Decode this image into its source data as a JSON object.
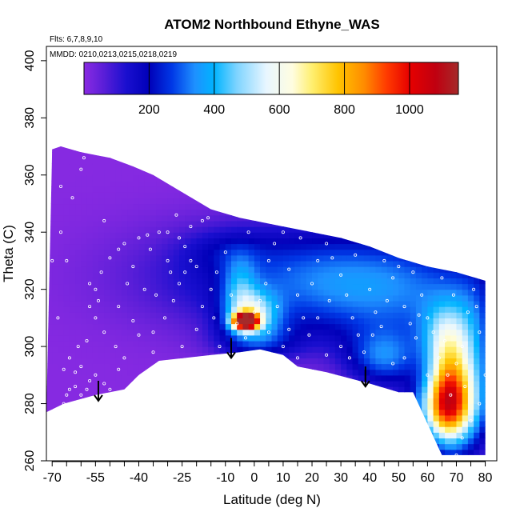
{
  "chart_data": {
    "type": "heatmap",
    "title": "ATOM2 Northbound Ethyne_WAS",
    "subtitle_flights": "Flts: 6,7,8,9,10",
    "subtitle_dates": "MMDD: 0210,0213,0215,0218,0219",
    "xlabel": "Latitude (deg N)",
    "ylabel": "Theta (C)",
    "xlim": [
      -72,
      84
    ],
    "ylim": [
      260,
      405
    ],
    "x_ticks": [
      -70,
      -55,
      -40,
      -25,
      -10,
      0,
      10,
      20,
      30,
      40,
      50,
      60,
      70,
      80
    ],
    "x_tick_labels": [
      "-70",
      "-55",
      "-40",
      "-25",
      "-10",
      "0",
      "10",
      "20",
      "30",
      "40",
      "50",
      "60",
      "70",
      "80"
    ],
    "x_minor_ticks": [
      -65,
      -60,
      -50,
      -45,
      -35,
      -30,
      -20,
      -15,
      -5,
      5,
      15,
      25,
      35,
      45,
      55,
      65,
      75
    ],
    "y_ticks": [
      260,
      280,
      300,
      320,
      340,
      360,
      380,
      400
    ],
    "y_tick_labels": [
      "260",
      "280",
      "300",
      "320",
      "340",
      "360",
      "380",
      "400"
    ],
    "colorbar": {
      "range": [
        0,
        1150
      ],
      "ticks": [
        200,
        400,
        600,
        800,
        1000
      ],
      "tick_labels": [
        "200",
        "400",
        "600",
        "800",
        "1000"
      ],
      "stops": [
        {
          "v": 0,
          "c": "#8a2be2"
        },
        {
          "v": 60,
          "c": "#5a1ed8"
        },
        {
          "v": 130,
          "c": "#1a0fcf"
        },
        {
          "v": 200,
          "c": "#0000b8"
        },
        {
          "v": 270,
          "c": "#0038e6"
        },
        {
          "v": 340,
          "c": "#1e90ff"
        },
        {
          "v": 400,
          "c": "#00b4ff"
        },
        {
          "v": 470,
          "c": "#7fd4ff"
        },
        {
          "v": 560,
          "c": "#e8f6ff"
        },
        {
          "v": 640,
          "c": "#fffde0"
        },
        {
          "v": 700,
          "c": "#ffef70"
        },
        {
          "v": 780,
          "c": "#ffc400"
        },
        {
          "v": 860,
          "c": "#ff8c00"
        },
        {
          "v": 930,
          "c": "#ff3a00"
        },
        {
          "v": 1000,
          "c": "#e60000"
        },
        {
          "v": 1080,
          "c": "#c00010"
        },
        {
          "v": 1150,
          "c": "#a52a2a"
        }
      ]
    },
    "top_boundary": [
      [
        -70,
        369
      ],
      [
        -67,
        370
      ],
      [
        -60,
        368
      ],
      [
        -50,
        366
      ],
      [
        -42,
        363
      ],
      [
        -35,
        360
      ],
      [
        -25,
        354
      ],
      [
        -15,
        348
      ],
      [
        -5,
        345
      ],
      [
        0,
        344
      ],
      [
        10,
        342
      ],
      [
        20,
        340
      ],
      [
        30,
        338
      ],
      [
        40,
        335
      ],
      [
        50,
        331
      ],
      [
        60,
        328
      ],
      [
        70,
        326
      ],
      [
        80,
        323
      ]
    ],
    "bottom_boundary": [
      [
        -72,
        277
      ],
      [
        -66,
        280
      ],
      [
        -55,
        283
      ],
      [
        -45,
        285
      ],
      [
        -40,
        290
      ],
      [
        -33,
        295
      ],
      [
        -15,
        297
      ],
      [
        -5,
        298
      ],
      [
        2,
        299
      ],
      [
        10,
        297
      ],
      [
        15,
        293
      ],
      [
        25,
        291
      ],
      [
        40,
        287
      ],
      [
        50,
        284
      ],
      [
        55,
        284
      ],
      [
        65,
        262
      ],
      [
        80,
        262
      ]
    ],
    "field_background": 5,
    "field_bumps": [
      {
        "lat": -3,
        "theta": 309,
        "sx": 3.0,
        "sy": 2.0,
        "amp": 1100
      },
      {
        "lat": -1,
        "theta": 312,
        "sx": 6.5,
        "sy": 5.5,
        "amp": 380
      },
      {
        "lat": 1,
        "theta": 302,
        "sx": 10,
        "sy": 5,
        "amp": 190
      },
      {
        "lat": -5,
        "theta": 322,
        "sx": 4,
        "sy": 7,
        "amp": 170
      },
      {
        "lat": 15,
        "theta": 325,
        "sx": 35,
        "sy": 13,
        "amp": 220
      },
      {
        "lat": 50,
        "theta": 318,
        "sx": 28,
        "sy": 14,
        "amp": 210
      },
      {
        "lat": 67,
        "theta": 285,
        "sx": 5,
        "sy": 13,
        "amp": 600
      },
      {
        "lat": 65,
        "theta": 278,
        "sx": 8,
        "sy": 8,
        "amp": 420
      },
      {
        "lat": 75,
        "theta": 290,
        "sx": 6,
        "sy": 18,
        "amp": 330
      },
      {
        "lat": 45,
        "theta": 296,
        "sx": 9,
        "sy": 7,
        "amp": 260
      },
      {
        "lat": 65,
        "theta": 305,
        "sx": 6,
        "sy": 8,
        "amp": 200
      },
      {
        "lat": -10,
        "theta": 334,
        "sx": 10,
        "sy": 5,
        "amp": 70
      }
    ],
    "sample_points": [
      [
        -66,
        280
      ],
      [
        -65,
        283
      ],
      [
        -64,
        285
      ],
      [
        -62,
        286
      ],
      [
        -60,
        283
      ],
      [
        -58,
        285
      ],
      [
        -57,
        288
      ],
      [
        -62,
        291
      ],
      [
        -60,
        293
      ],
      [
        -64,
        296
      ],
      [
        -61,
        300
      ],
      [
        -58,
        302
      ],
      [
        -55,
        290
      ],
      [
        -52,
        287
      ],
      [
        -50,
        285
      ],
      [
        -47,
        292
      ],
      [
        -48,
        300
      ],
      [
        -52,
        305
      ],
      [
        -55,
        310
      ],
      [
        -57,
        314
      ],
      [
        -55,
        320
      ],
      [
        -53,
        326
      ],
      [
        -50,
        331
      ],
      [
        -47,
        334
      ],
      [
        -45,
        336
      ],
      [
        -40,
        338
      ],
      [
        -37,
        339
      ],
      [
        -33,
        340
      ],
      [
        -30,
        340
      ],
      [
        -26,
        338
      ],
      [
        -24,
        335
      ],
      [
        -22,
        342
      ],
      [
        -18,
        344
      ],
      [
        -16,
        345
      ],
      [
        -65,
        330
      ],
      [
        -67,
        340
      ],
      [
        -63,
        352
      ],
      [
        -60,
        362
      ],
      [
        -57,
        322
      ],
      [
        -54,
        316
      ],
      [
        -47,
        314
      ],
      [
        -42,
        309
      ],
      [
        -40,
        304
      ],
      [
        -35,
        305
      ],
      [
        -31,
        310
      ],
      [
        -28,
        316
      ],
      [
        -26,
        322
      ],
      [
        -24,
        326
      ],
      [
        -22,
        330
      ],
      [
        -20,
        306
      ],
      [
        -18,
        314
      ],
      [
        -15,
        320
      ],
      [
        -13,
        326
      ],
      [
        -10,
        333
      ],
      [
        -8,
        318
      ],
      [
        -6,
        308
      ],
      [
        -3,
        303
      ],
      [
        0,
        312
      ],
      [
        2,
        316
      ],
      [
        4,
        322
      ],
      [
        5,
        330
      ],
      [
        7,
        336
      ],
      [
        10,
        340
      ],
      [
        12,
        327
      ],
      [
        15,
        318
      ],
      [
        17,
        310
      ],
      [
        19,
        304
      ],
      [
        20,
        322
      ],
      [
        22,
        330
      ],
      [
        25,
        336
      ],
      [
        27,
        331
      ],
      [
        30,
        325
      ],
      [
        32,
        318
      ],
      [
        34,
        310
      ],
      [
        36,
        304
      ],
      [
        38,
        298
      ],
      [
        40,
        320
      ],
      [
        42,
        312
      ],
      [
        44,
        307
      ],
      [
        46,
        316
      ],
      [
        48,
        324
      ],
      [
        50,
        328
      ],
      [
        52,
        314
      ],
      [
        54,
        308
      ],
      [
        56,
        303
      ],
      [
        58,
        318
      ],
      [
        60,
        310
      ],
      [
        62,
        305
      ],
      [
        64,
        296
      ],
      [
        66,
        302
      ],
      [
        67,
        290
      ],
      [
        68,
        283
      ],
      [
        70,
        294
      ],
      [
        72,
        300
      ],
      [
        74,
        312
      ],
      [
        76,
        320
      ],
      [
        78,
        305
      ],
      [
        80,
        290
      ],
      [
        78,
        280
      ],
      [
        75,
        274
      ],
      [
        72,
        268
      ],
      [
        70,
        262
      ],
      [
        30,
        300
      ],
      [
        25,
        297
      ],
      [
        15,
        296
      ],
      [
        10,
        300
      ],
      [
        5,
        305
      ],
      [
        -12,
        300
      ],
      [
        -25,
        300
      ],
      [
        -35,
        298
      ],
      [
        -45,
        296
      ],
      [
        -30,
        330
      ],
      [
        -38,
        320
      ],
      [
        -44,
        322
      ],
      [
        45,
        330
      ],
      [
        55,
        326
      ],
      [
        65,
        324
      ],
      [
        35,
        332
      ],
      [
        16,
        338
      ],
      [
        -2,
        340
      ],
      [
        8,
        314
      ],
      [
        26,
        316
      ],
      [
        52,
        296
      ],
      [
        60,
        290
      ],
      [
        -20,
        328
      ],
      [
        -29,
        326
      ],
      [
        -14,
        310
      ],
      [
        3,
        296
      ],
      [
        41,
        304
      ],
      [
        48,
        294
      ],
      [
        73,
        286
      ],
      [
        -66,
        292
      ],
      [
        -68,
        310
      ],
      [
        -70,
        330
      ],
      [
        -67,
        356
      ],
      [
        -59,
        366
      ],
      [
        -52,
        344
      ],
      [
        -42,
        328
      ],
      [
        -34,
        318
      ],
      [
        -36,
        334
      ],
      [
        -27,
        346
      ],
      [
        12,
        306
      ],
      [
        22,
        310
      ],
      [
        33,
        296
      ],
      [
        57,
        311
      ],
      [
        69,
        318
      ],
      [
        77,
        314
      ]
    ],
    "arrows": [
      {
        "lat": -54,
        "theta_top": 288,
        "theta_bottom": 281
      },
      {
        "lat": -8,
        "theta_top": 303,
        "theta_bottom": 296
      },
      {
        "lat": 38.5,
        "theta_top": 293,
        "theta_bottom": 286
      }
    ]
  }
}
